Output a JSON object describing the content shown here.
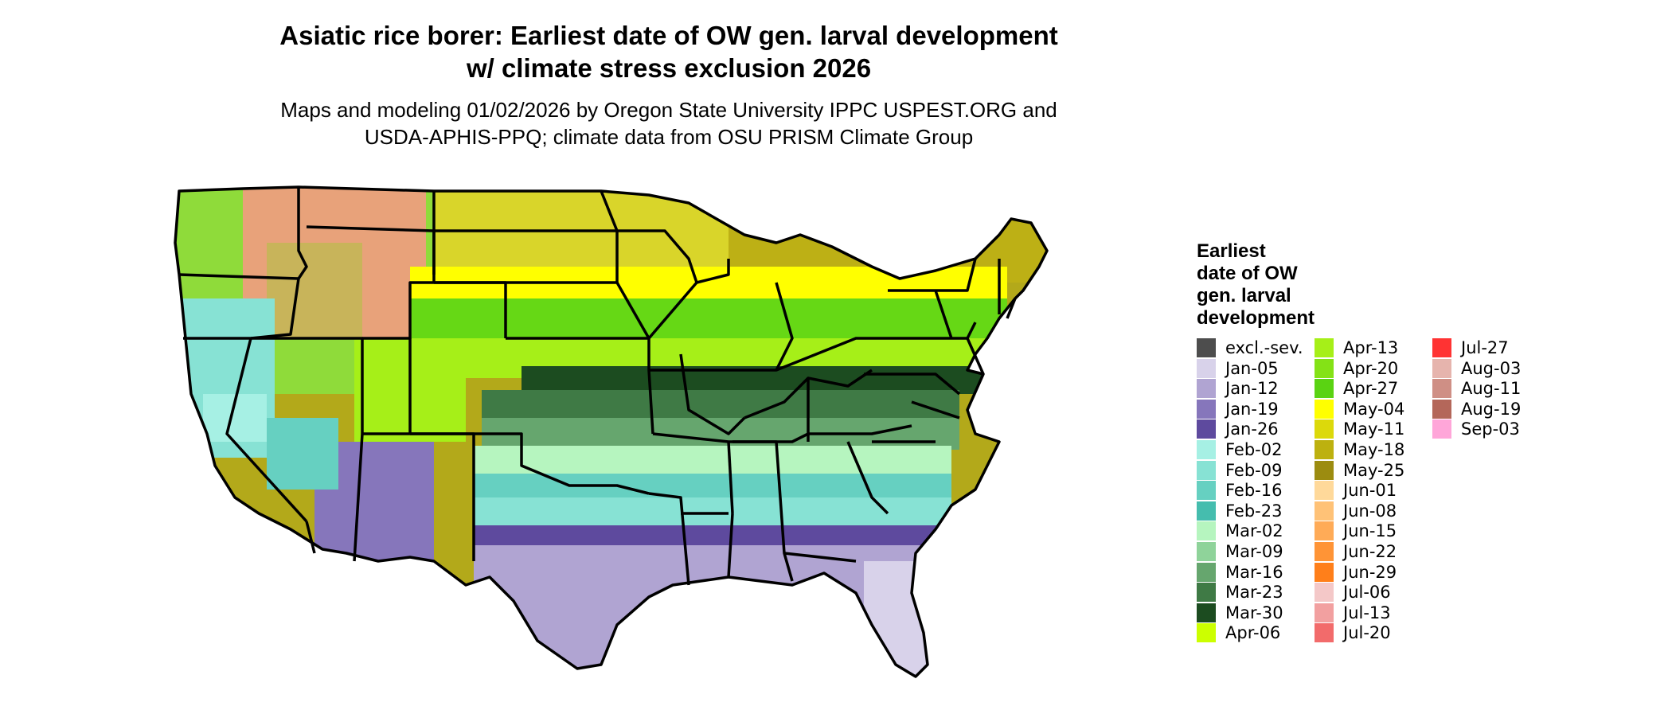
{
  "title_line1": "Asiatic rice borer: Earliest date of OW gen. larval development",
  "title_line2": "w/ climate stress exclusion 2026",
  "subtitle_line1": "Maps and modeling 01/02/2026 by Oregon State University IPPC USPEST.ORG and",
  "subtitle_line2": "USDA-APHIS-PPQ; climate data from OSU PRISM Climate Group",
  "legend": {
    "title_lines": [
      "Earliest",
      "date of OW",
      "gen. larval",
      "development"
    ],
    "columns": [
      [
        {
          "label": "excl.-sev.",
          "color": "#4d4d4d"
        },
        {
          "label": "Jan-05",
          "color": "#d8d2ea"
        },
        {
          "label": "Jan-12",
          "color": "#b0a4d2"
        },
        {
          "label": "Jan-19",
          "color": "#8676bb"
        },
        {
          "label": "Jan-26",
          "color": "#5e4a9e"
        },
        {
          "label": "Feb-02",
          "color": "#a6f0e4"
        },
        {
          "label": "Feb-09",
          "color": "#87e2d4"
        },
        {
          "label": "Feb-16",
          "color": "#66d0c1"
        },
        {
          "label": "Feb-23",
          "color": "#45bdae"
        },
        {
          "label": "Mar-02",
          "color": "#b6f5bf"
        },
        {
          "label": "Mar-09",
          "color": "#8fd39a"
        },
        {
          "label": "Mar-16",
          "color": "#66a66e"
        },
        {
          "label": "Mar-23",
          "color": "#3f7a45"
        },
        {
          "label": "Mar-30",
          "color": "#1c4c20"
        },
        {
          "label": "Apr-06",
          "color": "#ccff00"
        }
      ],
      [
        {
          "label": "Apr-13",
          "color": "#a6ef18"
        },
        {
          "label": "Apr-20",
          "color": "#84e216"
        },
        {
          "label": "Apr-27",
          "color": "#5ad312"
        },
        {
          "label": "May-04",
          "color": "#ffff00"
        },
        {
          "label": "May-11",
          "color": "#dcd90b"
        },
        {
          "label": "May-18",
          "color": "#bdb10f"
        },
        {
          "label": "May-25",
          "color": "#9c8c10"
        },
        {
          "label": "Jun-01",
          "color": "#ffd99a"
        },
        {
          "label": "Jun-08",
          "color": "#ffc277"
        },
        {
          "label": "Jun-15",
          "color": "#ffab57"
        },
        {
          "label": "Jun-22",
          "color": "#ff9436"
        },
        {
          "label": "Jun-29",
          "color": "#ff7f1a"
        },
        {
          "label": "Jul-06",
          "color": "#f4c8c8"
        },
        {
          "label": "Jul-13",
          "color": "#f2a0a0"
        },
        {
          "label": "Jul-20",
          "color": "#f26b6b"
        }
      ],
      [
        {
          "label": "Jul-27",
          "color": "#ff3333"
        },
        {
          "label": "Aug-03",
          "color": "#e6b4ad"
        },
        {
          "label": "Aug-11",
          "color": "#cf8f85"
        },
        {
          "label": "Aug-19",
          "color": "#b4675a"
        },
        {
          "label": "Sep-03",
          "color": "#ffa6d9"
        }
      ]
    ]
  }
}
